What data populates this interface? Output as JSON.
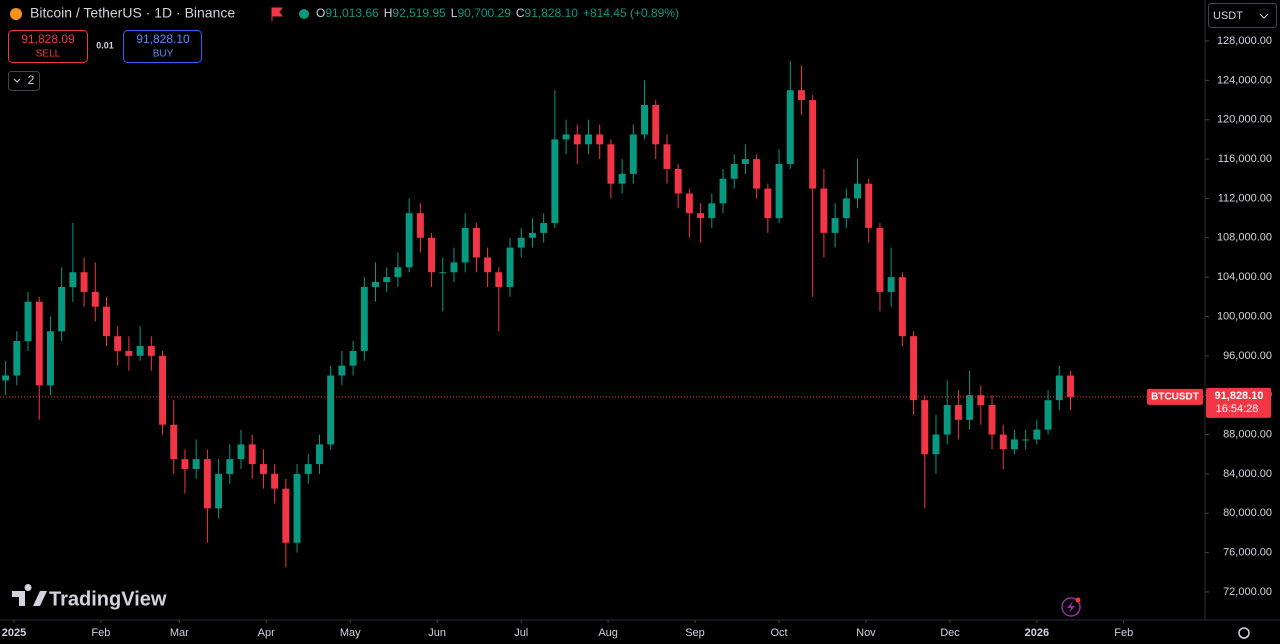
{
  "header": {
    "title": "Bitcoin / TetherUS · 1D · Binance",
    "ohlc": [
      {
        "k": "O",
        "v": "91,013.66"
      },
      {
        "k": "H",
        "v": "92,519.95"
      },
      {
        "k": "L",
        "v": "90,700.29"
      },
      {
        "k": "C",
        "v": "91,828.10"
      }
    ],
    "change": "+814.45 (+0.89%)"
  },
  "trade": {
    "sell_price": "91,828.09",
    "sell": "SELL",
    "spread": "0.01",
    "buy_price": "91,828.10",
    "buy": "BUY"
  },
  "indicators_count": "2",
  "currency": "USDT",
  "brand": "TradingView",
  "chart_data": {
    "type": "candlestick",
    "up_color": "#089981",
    "down_color": "#f23645",
    "grid": false,
    "symbol_label": "BTCUSDT",
    "last_price_label": "91,828.10",
    "countdown": "16:54:28",
    "x": [
      -3,
      1,
      5,
      9,
      13,
      17,
      21,
      25,
      29,
      33,
      37,
      41,
      45,
      49,
      53,
      57,
      61,
      65,
      69,
      73,
      77,
      81,
      85,
      89,
      93,
      97,
      101,
      105,
      109,
      113,
      117,
      121,
      125,
      129,
      133,
      137,
      141,
      145,
      149,
      153,
      157,
      161,
      165,
      169,
      173,
      177,
      181,
      185,
      189,
      193,
      197,
      201,
      205,
      209,
      213,
      217,
      221,
      225,
      229,
      233,
      237,
      241,
      245,
      249,
      253,
      257,
      261,
      265,
      269,
      273,
      277,
      281,
      285,
      289,
      293,
      297,
      301,
      305,
      309,
      313,
      317,
      321,
      325,
      329,
      333,
      337,
      341,
      345,
      349,
      353,
      357,
      361,
      365,
      369,
      373,
      377
    ],
    "open": [
      93500,
      94000,
      97500,
      101500,
      93000,
      98500,
      103000,
      104500,
      102500,
      101000,
      98000,
      96500,
      96000,
      97000,
      96000,
      89000,
      85500,
      84500,
      85500,
      80500,
      84000,
      85500,
      87000,
      85000,
      84000,
      82500,
      77000,
      84000,
      85000,
      87000,
      94000,
      95000,
      96500,
      103000,
      103500,
      104000,
      105000,
      110500,
      108000,
      104500,
      104500,
      105500,
      109000,
      106000,
      104500,
      103000,
      107000,
      108000,
      108500,
      109500,
      118000,
      118500,
      117500,
      118500,
      117500,
      113500,
      114500,
      118500,
      121500,
      117500,
      115000,
      112500,
      110500,
      110000,
      111500,
      114000,
      115500,
      116000,
      113000,
      110000,
      115500,
      123000,
      122000,
      113000,
      108500,
      110000,
      112000,
      113500,
      109000,
      102500,
      104000,
      98000,
      91500,
      86000,
      88000,
      91000,
      89500,
      92000,
      91000,
      88000,
      86500,
      87500,
      87500,
      88500,
      91500,
      94000
    ],
    "high": [
      95500,
      98500,
      102500,
      102000,
      100000,
      105000,
      109500,
      106000,
      105500,
      102000,
      99000,
      98000,
      99000,
      98000,
      96500,
      91500,
      86500,
      87500,
      86500,
      85500,
      87000,
      88500,
      88000,
      86500,
      85000,
      83500,
      85000,
      86000,
      88000,
      95000,
      96500,
      97500,
      104000,
      105500,
      105000,
      106500,
      112000,
      111500,
      108500,
      106000,
      107000,
      110500,
      109500,
      107000,
      105000,
      108000,
      109000,
      110000,
      110500,
      123000,
      120000,
      119500,
      120000,
      119500,
      118000,
      116000,
      119500,
      124000,
      122000,
      118500,
      115500,
      113000,
      111500,
      112500,
      115000,
      116500,
      117500,
      116500,
      113500,
      117000,
      126000,
      125500,
      122500,
      115000,
      111500,
      113000,
      116000,
      114000,
      109500,
      107000,
      104500,
      98500,
      92000,
      90000,
      93500,
      92500,
      94500,
      93000,
      92000,
      89000,
      88500,
      88500,
      89500,
      92500,
      95000,
      94500
    ],
    "low": [
      92000,
      93000,
      96500,
      89500,
      92000,
      97500,
      101500,
      101000,
      99500,
      97000,
      95000,
      94500,
      95500,
      94500,
      88000,
      84000,
      82000,
      83500,
      77000,
      79500,
      83000,
      84500,
      83500,
      82500,
      81000,
      74500,
      76000,
      83000,
      84000,
      86500,
      93000,
      94000,
      95500,
      101500,
      102500,
      103000,
      104500,
      106500,
      103000,
      100500,
      103500,
      104500,
      104500,
      103000,
      98500,
      102000,
      106000,
      107000,
      107500,
      109000,
      116500,
      115500,
      116500,
      116000,
      112000,
      112500,
      113500,
      118000,
      116000,
      113500,
      111000,
      108000,
      107500,
      109000,
      110500,
      113000,
      114500,
      112000,
      108500,
      109500,
      115000,
      120500,
      102000,
      106000,
      107000,
      109000,
      111000,
      107500,
      100500,
      101000,
      97000,
      90000,
      80500,
      84000,
      87000,
      87500,
      88500,
      89000,
      86500,
      84500,
      86000,
      86500,
      87000,
      88000,
      90500,
      90500
    ],
    "close": [
      94000,
      97500,
      101500,
      93000,
      98500,
      103000,
      104500,
      102500,
      101000,
      98000,
      96500,
      96000,
      97000,
      96000,
      89000,
      85500,
      84500,
      85500,
      80500,
      84000,
      85500,
      87000,
      85000,
      84000,
      82500,
      77000,
      84000,
      85000,
      87000,
      94000,
      95000,
      96500,
      103000,
      103500,
      104000,
      105000,
      110500,
      108000,
      104500,
      104500,
      105500,
      109000,
      106000,
      104500,
      103000,
      107000,
      108000,
      108500,
      109500,
      118000,
      118500,
      117500,
      118500,
      117500,
      113500,
      114500,
      118500,
      121500,
      117500,
      115000,
      112500,
      110500,
      110000,
      111500,
      114000,
      115500,
      116000,
      113000,
      110000,
      115500,
      123000,
      122000,
      113000,
      108500,
      110000,
      112000,
      113500,
      109000,
      102500,
      104000,
      98000,
      91500,
      86000,
      88000,
      91000,
      89500,
      92000,
      91000,
      88000,
      86500,
      87500,
      87500,
      88500,
      91500,
      94000,
      91828.1
    ],
    "xlim": [
      -5,
      425
    ],
    "xticks": [
      {
        "value": 0,
        "label": "2025"
      },
      {
        "value": 31,
        "label": "Feb"
      },
      {
        "value": 59,
        "label": "Mar"
      },
      {
        "value": 90,
        "label": "Apr"
      },
      {
        "value": 120,
        "label": "May"
      },
      {
        "value": 151,
        "label": "Jun"
      },
      {
        "value": 181,
        "label": "Jul"
      },
      {
        "value": 212,
        "label": "Aug"
      },
      {
        "value": 243,
        "label": "Sep"
      },
      {
        "value": 273,
        "label": "Oct"
      },
      {
        "value": 304,
        "label": "Nov"
      },
      {
        "value": 334,
        "label": "Dec"
      },
      {
        "value": 365,
        "label": "2026"
      },
      {
        "value": 396,
        "label": "Feb"
      }
    ],
    "ylim": [
      69150,
      132170
    ],
    "yticks": [
      {
        "value": 72000,
        "label": "72,000.00"
      },
      {
        "value": 76000,
        "label": "76,000.00"
      },
      {
        "value": 80000,
        "label": "80,000.00"
      },
      {
        "value": 84000,
        "label": "84,000.00"
      },
      {
        "value": 88000,
        "label": "88,000.00"
      },
      {
        "value": 92000,
        "label": "92,000.00"
      },
      {
        "value": 96000,
        "label": "96,000.00"
      },
      {
        "value": 100000,
        "label": "100,000.00"
      },
      {
        "value": 104000,
        "label": "104,000.00"
      },
      {
        "value": 108000,
        "label": "108,000.00"
      },
      {
        "value": 112000,
        "label": "112,000.00"
      },
      {
        "value": 116000,
        "label": "116,000.00"
      },
      {
        "value": 120000,
        "label": "120,000.00"
      },
      {
        "value": 124000,
        "label": "124,000.00"
      },
      {
        "value": 128000,
        "label": "128,000.00"
      }
    ]
  }
}
